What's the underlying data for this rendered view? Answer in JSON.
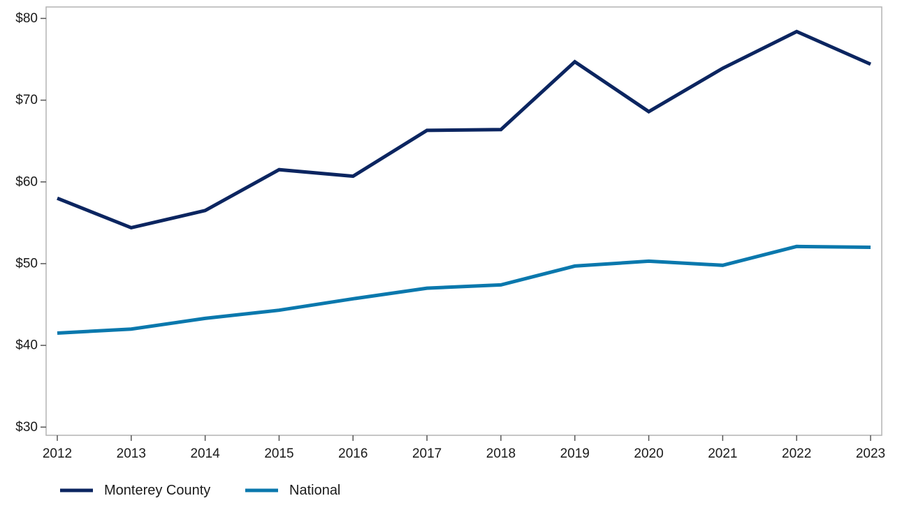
{
  "chart_data": {
    "type": "line",
    "title": "",
    "xlabel": "",
    "ylabel": "",
    "x": [
      2012,
      2013,
      2014,
      2015,
      2016,
      2017,
      2018,
      2019,
      2020,
      2021,
      2022,
      2023
    ],
    "x_tick_labels": [
      "2012",
      "2013",
      "2014",
      "2015",
      "2016",
      "2017",
      "2018",
      "2019",
      "2020",
      "2021",
      "2022",
      "2023"
    ],
    "y_tick_values": [
      30,
      40,
      50,
      60,
      70,
      80
    ],
    "y_tick_labels": [
      "$30",
      "$40",
      "$50",
      "$60",
      "$70",
      "$80"
    ],
    "ylim": [
      29,
      81.4
    ],
    "grid": false,
    "legend_position": "bottom-left",
    "series": [
      {
        "name": "Monterey County",
        "color": "#0b2560",
        "values": [
          58.0,
          54.4,
          56.5,
          61.5,
          60.7,
          66.3,
          66.4,
          74.7,
          68.6,
          73.9,
          78.4,
          74.4
        ]
      },
      {
        "name": "National",
        "color": "#0a78ad",
        "values": [
          41.5,
          42.0,
          43.3,
          44.3,
          45.7,
          47.0,
          47.4,
          49.7,
          50.3,
          49.8,
          52.1,
          52.0
        ]
      }
    ]
  }
}
